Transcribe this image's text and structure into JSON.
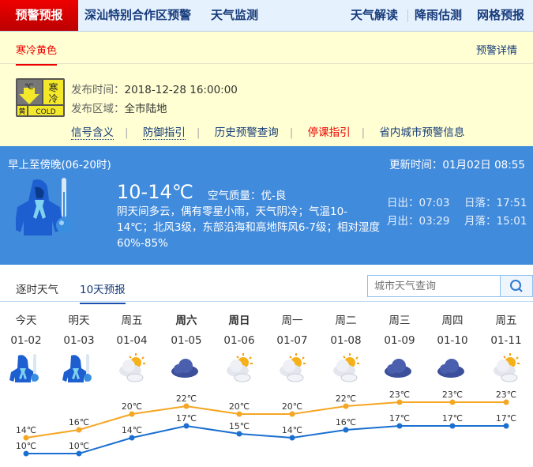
{
  "nav": {
    "items": [
      "预警预报",
      "深汕特别合作区预警",
      "天气监测"
    ],
    "right": [
      "天气解读",
      "降雨估测",
      "网格预报"
    ]
  },
  "warning": {
    "tab": "寒冷黄色",
    "detail_link": "预警详情",
    "badge": {
      "chinese": "寒冷",
      "level": "黄",
      "english": "COLD",
      "unit": "℃"
    },
    "time_label": "发布时间：",
    "time": "2018-12-28 16:00:00",
    "area_label": "发布区域：",
    "area": "全市陆地",
    "links": [
      "信号含义",
      "防御指引",
      "历史预警查询",
      "停课指引",
      "省内城市预警信息"
    ]
  },
  "current": {
    "period": "早上至傍晚(06-20时)",
    "update": "更新时间：01月02日 08:55",
    "temp": "10-14℃",
    "aq_label": "空气质量：",
    "aq": "优-良",
    "desc": "阴天间多云，偶有零星小雨，天气阴冷；气温10-14℃；北风3级，东部沿海和高地阵风6-7级；相对湿度60%-85%",
    "sunrise": "日出：07:03",
    "sunset": "日落：17:51",
    "moonrise": "月出：03:29",
    "moonset": "月落：15:01",
    "icon": "cold-icon"
  },
  "forecast": {
    "tabs": [
      "逐时天气",
      "10天预报"
    ],
    "active_tab": 1,
    "search_placeholder": "城市天气查询",
    "days": [
      {
        "name": "今天",
        "date": "01-02",
        "icon": "cold",
        "bold": false
      },
      {
        "name": "明天",
        "date": "01-03",
        "icon": "cold",
        "bold": false
      },
      {
        "name": "周五",
        "date": "01-04",
        "icon": "partly-cloudy",
        "bold": false
      },
      {
        "name": "周六",
        "date": "01-05",
        "icon": "cloudy",
        "bold": true
      },
      {
        "name": "周日",
        "date": "01-06",
        "icon": "partly-cloudy",
        "bold": true
      },
      {
        "name": "周一",
        "date": "01-07",
        "icon": "partly-cloudy",
        "bold": false
      },
      {
        "name": "周二",
        "date": "01-08",
        "icon": "partly-cloudy",
        "bold": false
      },
      {
        "name": "周三",
        "date": "01-09",
        "icon": "cloudy",
        "bold": false
      },
      {
        "name": "周四",
        "date": "01-10",
        "icon": "cloudy",
        "bold": false
      },
      {
        "name": "周五",
        "date": "01-11",
        "icon": "partly-cloudy",
        "bold": false
      }
    ]
  },
  "chart_data": {
    "type": "line",
    "categories": [
      "01-02",
      "01-03",
      "01-04",
      "01-05",
      "01-06",
      "01-07",
      "01-08",
      "01-09",
      "01-10",
      "01-11"
    ],
    "unit": "℃",
    "series": [
      {
        "key": "high",
        "color": "#f5a623",
        "values": [
          14,
          16,
          20,
          22,
          20,
          20,
          22,
          23,
          23,
          23
        ]
      },
      {
        "key": "low",
        "color": "#1a6fd0",
        "values": [
          10,
          10,
          14,
          17,
          15,
          14,
          16,
          17,
          17,
          17
        ]
      }
    ]
  }
}
